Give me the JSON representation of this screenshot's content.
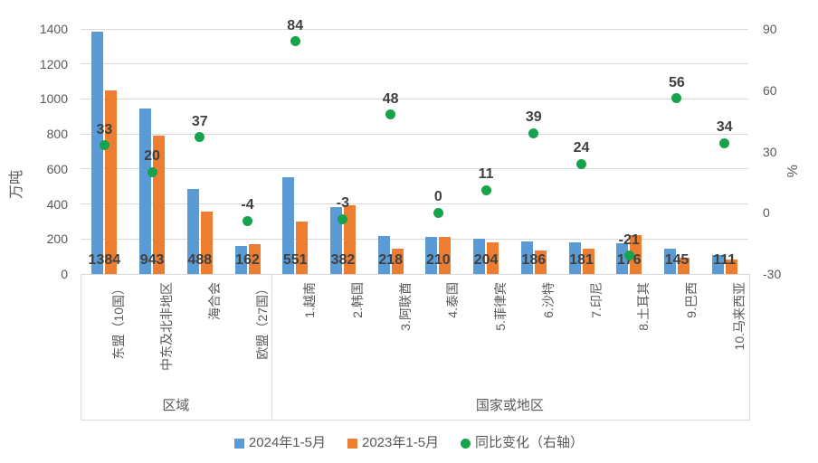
{
  "chart_data": {
    "type": "bar",
    "subtype": "grouped bars with scatter overlay on secondary axis",
    "title": "",
    "categories": [
      "东盟（10国）",
      "中东及北非地区",
      "海合会",
      "欧盟（27国）",
      "1.越南",
      "2.韩国",
      "3.阿联酋",
      "4.泰国",
      "5.菲律宾",
      "6.沙特",
      "7.印尼",
      "8.土耳其",
      "9.巴西",
      "10.马来西亚"
    ],
    "category_groups": [
      {
        "label": "区域",
        "from": 0,
        "to": 3
      },
      {
        "label": "国家或地区",
        "from": 4,
        "to": 13
      }
    ],
    "series": [
      {
        "name": "2024年1-5月",
        "type": "bar",
        "axis": "left",
        "color": "#5B9BD5",
        "data_labels": true,
        "values": [
          1384,
          943,
          488,
          162,
          551,
          382,
          218,
          210,
          204,
          186,
          181,
          176,
          145,
          111
        ]
      },
      {
        "name": "2023年1-5月",
        "type": "bar",
        "axis": "left",
        "color": "#ED7D31",
        "data_labels": false,
        "values": [
          1050,
          788,
          355,
          168,
          299,
          394,
          146,
          210,
          183,
          133,
          146,
          222,
          93,
          83
        ]
      },
      {
        "name": "同比变化（右轴）",
        "type": "scatter",
        "axis": "right",
        "color": "#17A34C",
        "data_labels": true,
        "values": [
          33,
          20,
          37,
          -4,
          84,
          -3,
          48,
          0,
          11,
          39,
          24,
          -21,
          56,
          34
        ]
      }
    ],
    "left_axis": {
      "title": "万吨",
      "min": 0,
      "max": 1400,
      "tick_step": 200,
      "tick_values": [
        0,
        200,
        400,
        600,
        800,
        1000,
        1200,
        1400
      ],
      "tick_labels": [
        "0",
        "200",
        "400",
        "600",
        "800",
        "1000",
        "1200",
        "1400"
      ]
    },
    "right_axis": {
      "title": "%",
      "min": -30,
      "max": 90,
      "tick_values": [
        90,
        60,
        30,
        0,
        -30
      ],
      "tick_labels": [
        "90",
        "60",
        "30",
        "0",
        "-30"
      ]
    },
    "grid": true,
    "legend_position": "bottom",
    "legend": [
      {
        "label": "2024年1-5月",
        "marker": "square",
        "color": "#5B9BD5"
      },
      {
        "label": "2023年1-5月",
        "marker": "square",
        "color": "#ED7D31"
      },
      {
        "label": "同比变化（右轴）",
        "marker": "circle",
        "color": "#17A34C"
      }
    ],
    "colors": {
      "grid": "#d9d9d9",
      "tick_text": "#595959",
      "data_label_text": "#404040"
    }
  }
}
